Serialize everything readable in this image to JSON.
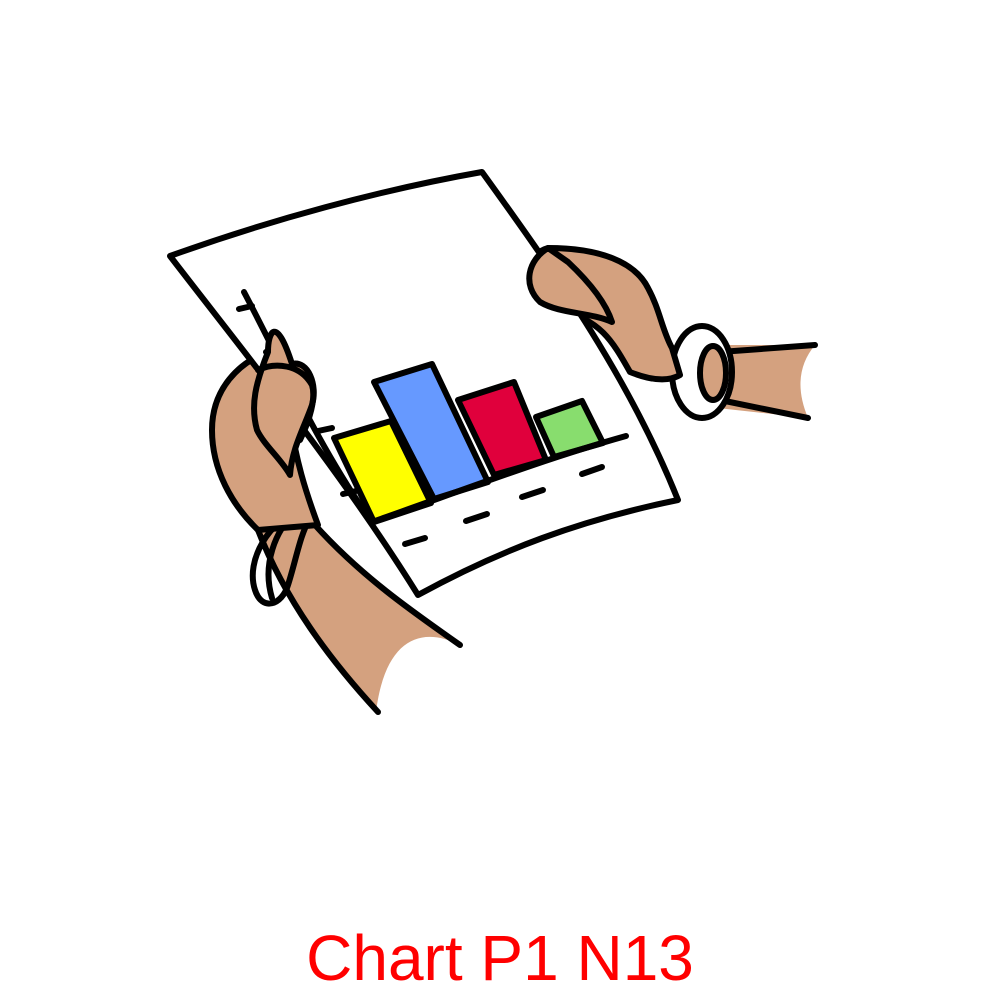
{
  "caption": {
    "text": "Chart P1 N13",
    "color": "#ff0000"
  },
  "illustration": {
    "icon": "hands-holding-bar-chart-document-icon",
    "colors": {
      "outline": "#000000",
      "paper": "#ffffff",
      "skin": "#d4a17f",
      "bangle": "#ffffff"
    },
    "bars": [
      {
        "name": "yellow",
        "color": "#ffff00",
        "relative_height": 0.53
      },
      {
        "name": "blue",
        "color": "#6699ff",
        "relative_height": 1.0
      },
      {
        "name": "red",
        "color": "#e0003c",
        "relative_height": 0.67
      },
      {
        "name": "green",
        "color": "#88dd6e",
        "relative_height": 0.33
      }
    ]
  }
}
